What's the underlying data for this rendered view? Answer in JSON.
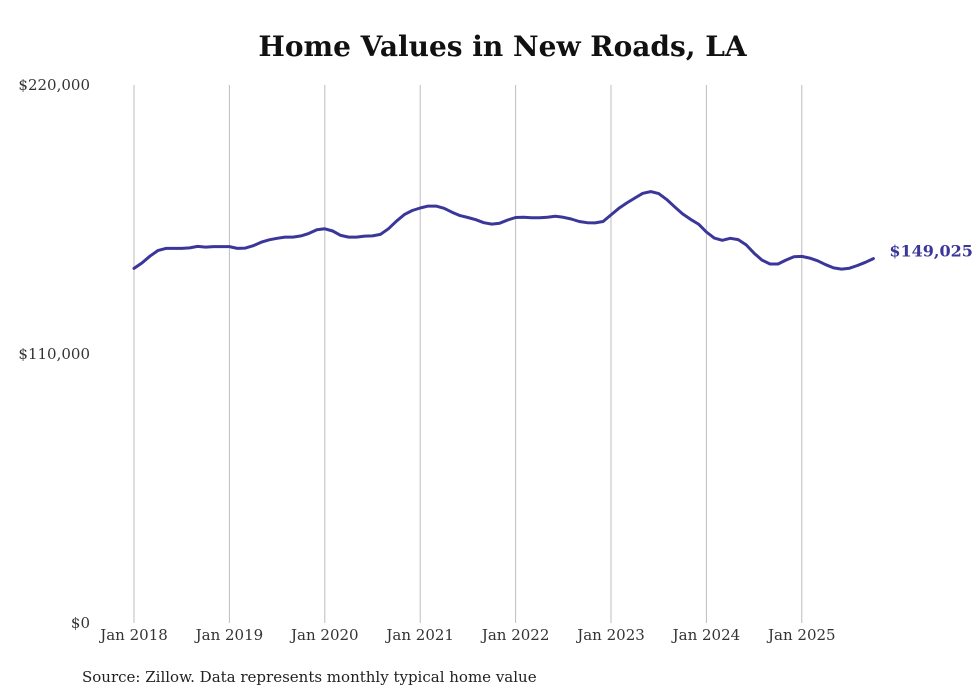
{
  "chart_data": {
    "type": "line",
    "title": "Home Values in New Roads, LA",
    "xlabel": "",
    "ylabel": "",
    "ylim": [
      0,
      220000
    ],
    "y_ticks": [
      {
        "value": 0,
        "label": "$0"
      },
      {
        "value": 110000,
        "label": "$110,000"
      },
      {
        "value": 220000,
        "label": "$220,000"
      }
    ],
    "x_ticks": [
      {
        "value": 2018.0,
        "label": "Jan 2018"
      },
      {
        "value": 2019.0,
        "label": "Jan 2019"
      },
      {
        "value": 2020.0,
        "label": "Jan 2020"
      },
      {
        "value": 2021.0,
        "label": "Jan 2021"
      },
      {
        "value": 2022.0,
        "label": "Jan 2022"
      },
      {
        "value": 2023.0,
        "label": "Jan 2023"
      },
      {
        "value": 2024.0,
        "label": "Jan 2024"
      },
      {
        "value": 2025.0,
        "label": "Jan 2025"
      }
    ],
    "xlim": [
      2018.0,
      2025.75
    ],
    "grid": "vertical",
    "series": [
      {
        "name": "Typical home value",
        "color": "#3b3699",
        "x": [
          2018.0,
          2018.083,
          2018.167,
          2018.25,
          2018.333,
          2018.417,
          2018.5,
          2018.583,
          2018.667,
          2018.75,
          2018.833,
          2018.917,
          2019.0,
          2019.083,
          2019.167,
          2019.25,
          2019.333,
          2019.417,
          2019.5,
          2019.583,
          2019.667,
          2019.75,
          2019.833,
          2019.917,
          2020.0,
          2020.083,
          2020.167,
          2020.25,
          2020.333,
          2020.417,
          2020.5,
          2020.583,
          2020.667,
          2020.75,
          2020.833,
          2020.917,
          2021.0,
          2021.083,
          2021.167,
          2021.25,
          2021.333,
          2021.417,
          2021.5,
          2021.583,
          2021.667,
          2021.75,
          2021.833,
          2021.917,
          2022.0,
          2022.083,
          2022.167,
          2022.25,
          2022.333,
          2022.417,
          2022.5,
          2022.583,
          2022.667,
          2022.75,
          2022.833,
          2022.917,
          2023.0,
          2023.083,
          2023.167,
          2023.25,
          2023.333,
          2023.417,
          2023.5,
          2023.583,
          2023.667,
          2023.75,
          2023.833,
          2023.917,
          2024.0,
          2024.083,
          2024.167,
          2024.25,
          2024.333,
          2024.417,
          2024.5,
          2024.583,
          2024.667,
          2024.75,
          2024.833,
          2024.917,
          2025.0,
          2025.083,
          2025.167,
          2025.25,
          2025.333,
          2025.417,
          2025.5,
          2025.583,
          2025.667,
          2025.75
        ],
        "values": [
          145000,
          147200,
          150000,
          152300,
          153200,
          153200,
          153200,
          153400,
          154000,
          153700,
          153900,
          153900,
          153900,
          153200,
          153300,
          154300,
          155700,
          156700,
          157300,
          157800,
          157800,
          158300,
          159300,
          160800,
          161200,
          160300,
          158500,
          157800,
          157800,
          158200,
          158300,
          158900,
          161200,
          164300,
          167000,
          168700,
          169700,
          170500,
          170500,
          169600,
          168000,
          166600,
          165800,
          164900,
          163700,
          163100,
          163500,
          164800,
          165800,
          165900,
          165700,
          165700,
          165900,
          166300,
          165900,
          165200,
          164200,
          163700,
          163600,
          164200,
          166900,
          169600,
          171800,
          173800,
          175700,
          176400,
          175600,
          173200,
          170200,
          167300,
          165100,
          163100,
          159900,
          157400,
          156500,
          157300,
          156800,
          154600,
          151200,
          148400,
          146800,
          146800,
          148400,
          149800,
          149900,
          149200,
          148100,
          146500,
          145200,
          144700,
          145100,
          146200,
          147500,
          149025
        ]
      }
    ],
    "end_label": "$149,025"
  },
  "source_note": "Source: Zillow. Data represents monthly typical home value"
}
